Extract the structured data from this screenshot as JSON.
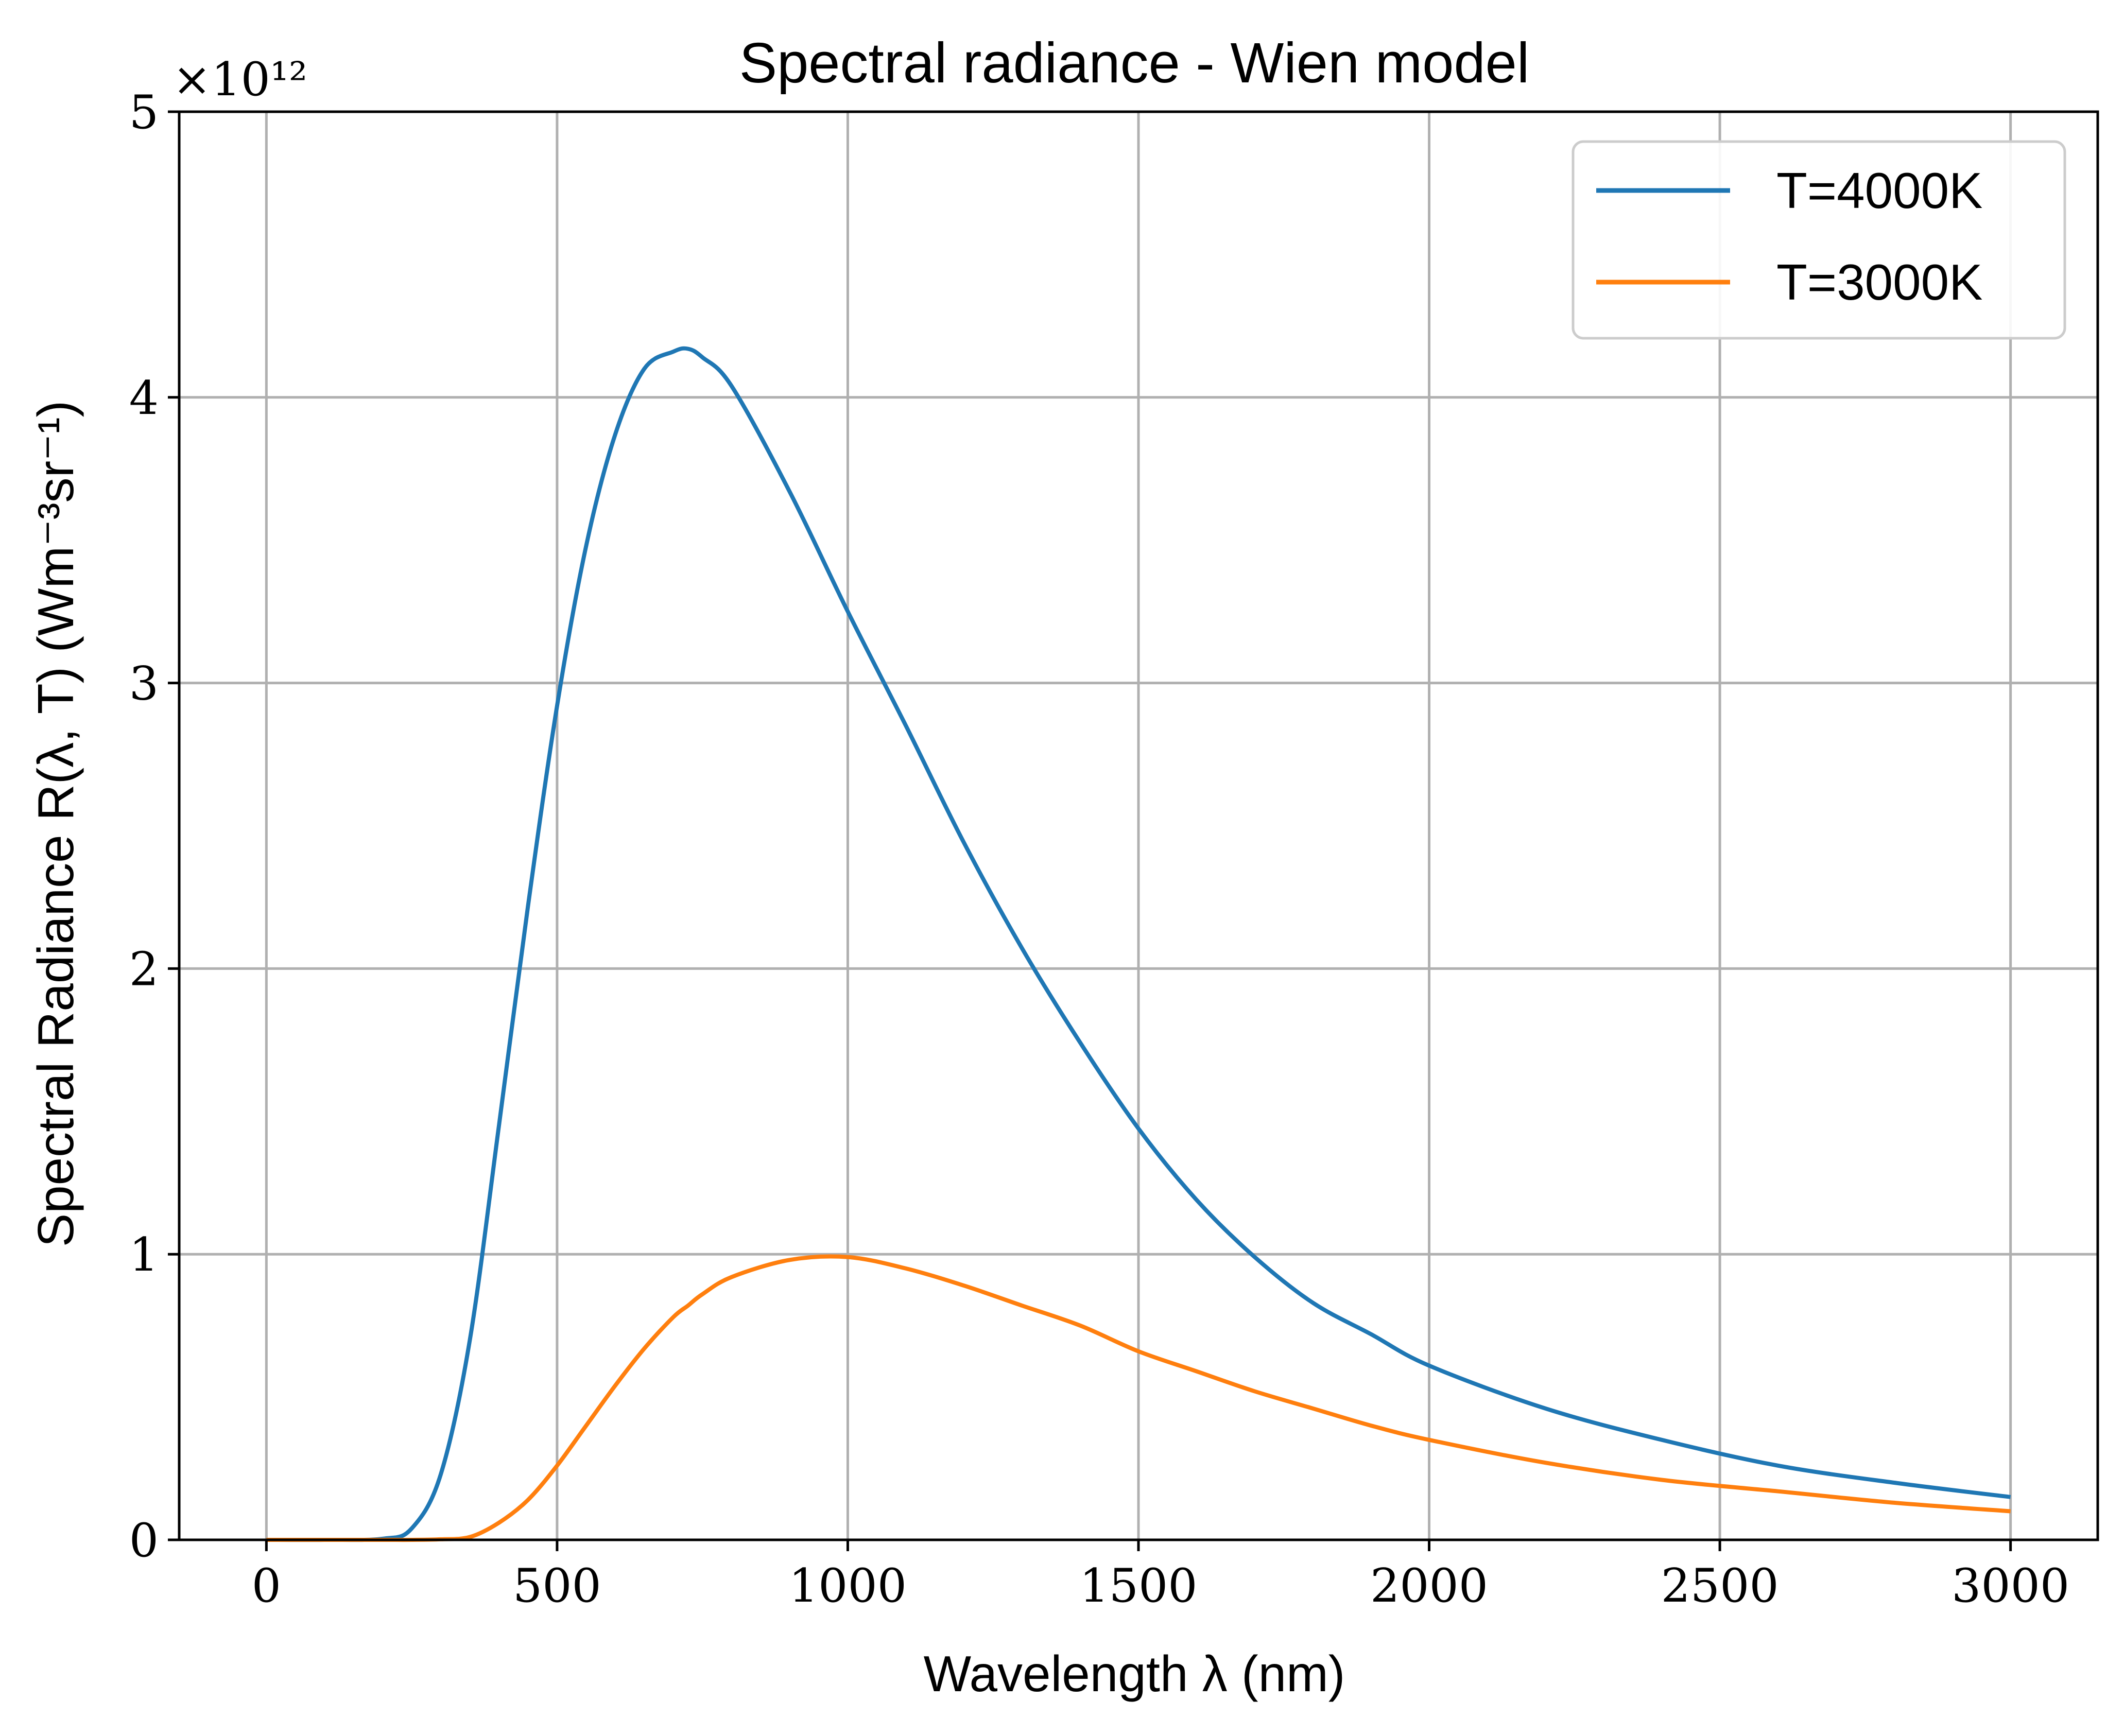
{
  "chart_data": {
    "type": "line",
    "title": "Spectral radiance - Wien model",
    "xlabel": "Wavelength λ (nm)",
    "ylabel": "Spectral Radiance R(λ, T) (Wm⁻³sr⁻¹)",
    "y_multiplier": "×10¹²",
    "xlim": [
      -150,
      3150
    ],
    "ylim": [
      0,
      5
    ],
    "xticks": [
      0,
      500,
      1000,
      1500,
      2000,
      2500,
      3000
    ],
    "yticks": [
      0,
      1,
      2,
      3,
      4,
      5
    ],
    "xtick_labels": [
      "0",
      "500",
      "1000",
      "1500",
      "2000",
      "2500",
      "3000"
    ],
    "ytick_labels": [
      "0",
      "1",
      "2",
      "3",
      "4",
      "5"
    ],
    "grid": true,
    "legend_position": "top-right",
    "x": [
      0,
      100,
      200,
      250,
      300,
      350,
      400,
      450,
      500,
      550,
      600,
      650,
      700,
      725,
      750,
      800,
      900,
      1000,
      1100,
      1200,
      1300,
      1400,
      1500,
      1600,
      1700,
      1800,
      1900,
      2000,
      2200,
      2400,
      2600,
      2800,
      3000
    ],
    "series": [
      {
        "name": "T=4000K",
        "color": "#1f77b4",
        "values": [
          0,
          0,
          0.004,
          0.04,
          0.23,
          0.7,
          1.45,
          2.22,
          2.92,
          3.48,
          3.87,
          4.1,
          4.16,
          4.17,
          4.14,
          4.04,
          3.67,
          3.25,
          2.85,
          2.44,
          2.07,
          1.74,
          1.44,
          1.19,
          0.99,
          0.83,
          0.72,
          0.61,
          0.46,
          0.35,
          0.26,
          0.2,
          0.15
        ]
      },
      {
        "name": "T=3000K",
        "color": "#ff7f0e",
        "values": [
          0,
          0,
          0,
          0,
          0.002,
          0.01,
          0.06,
          0.14,
          0.26,
          0.4,
          0.54,
          0.67,
          0.78,
          0.82,
          0.86,
          0.92,
          0.98,
          0.99,
          0.95,
          0.89,
          0.82,
          0.75,
          0.66,
          0.59,
          0.52,
          0.46,
          0.4,
          0.35,
          0.27,
          0.21,
          0.17,
          0.13,
          0.1
        ]
      }
    ]
  }
}
